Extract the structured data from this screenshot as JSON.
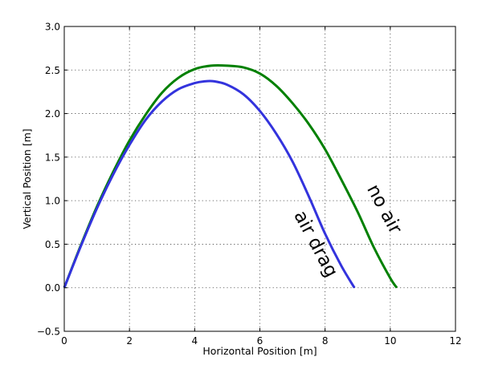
{
  "chart_data": {
    "type": "line",
    "title": "",
    "xlabel": "Horizontal Position [m]",
    "ylabel": "Vertical Position [m]",
    "xlim": [
      0,
      12
    ],
    "ylim": [
      -0.5,
      3.0
    ],
    "xticks": [
      0,
      2,
      4,
      6,
      8,
      10,
      12
    ],
    "xtick_labels": [
      "0",
      "2",
      "4",
      "6",
      "8",
      "10",
      "12"
    ],
    "yticks": [
      -0.5,
      0.0,
      0.5,
      1.0,
      1.5,
      2.0,
      2.5,
      3.0
    ],
    "ytick_labels": [
      "−0.5",
      "0.0",
      "0.5",
      "1.0",
      "1.5",
      "2.0",
      "2.5",
      "3.0"
    ],
    "grid": true,
    "series": [
      {
        "color": "#008000",
        "x": [
          0.0,
          0.5,
          1.0,
          1.5,
          2.0,
          2.5,
          3.0,
          3.5,
          4.0,
          4.5,
          5.0,
          5.5,
          6.0,
          6.5,
          7.0,
          7.5,
          8.0,
          8.5,
          9.0,
          9.5,
          10.0,
          10.2
        ],
        "y": [
          0.0,
          0.48,
          0.93,
          1.33,
          1.69,
          1.99,
          2.24,
          2.41,
          2.51,
          2.55,
          2.55,
          2.53,
          2.46,
          2.32,
          2.12,
          1.88,
          1.59,
          1.24,
          0.87,
          0.46,
          0.11,
          0.0
        ]
      },
      {
        "color": "#3333dd",
        "x": [
          0.0,
          0.5,
          1.0,
          1.5,
          2.0,
          2.5,
          3.0,
          3.5,
          4.0,
          4.3,
          4.6,
          5.0,
          5.5,
          6.0,
          6.5,
          7.0,
          7.5,
          8.0,
          8.5,
          8.9
        ],
        "y": [
          0.0,
          0.47,
          0.91,
          1.3,
          1.64,
          1.93,
          2.14,
          2.28,
          2.35,
          2.37,
          2.37,
          2.33,
          2.22,
          2.03,
          1.77,
          1.45,
          1.05,
          0.62,
          0.25,
          0.0
        ]
      }
    ],
    "annotations": [
      {
        "text": "no air",
        "x": 9.8,
        "y": 0.9,
        "rotation": 62
      },
      {
        "text": "air drag",
        "x": 7.7,
        "y": 0.5,
        "rotation": 62
      }
    ]
  }
}
